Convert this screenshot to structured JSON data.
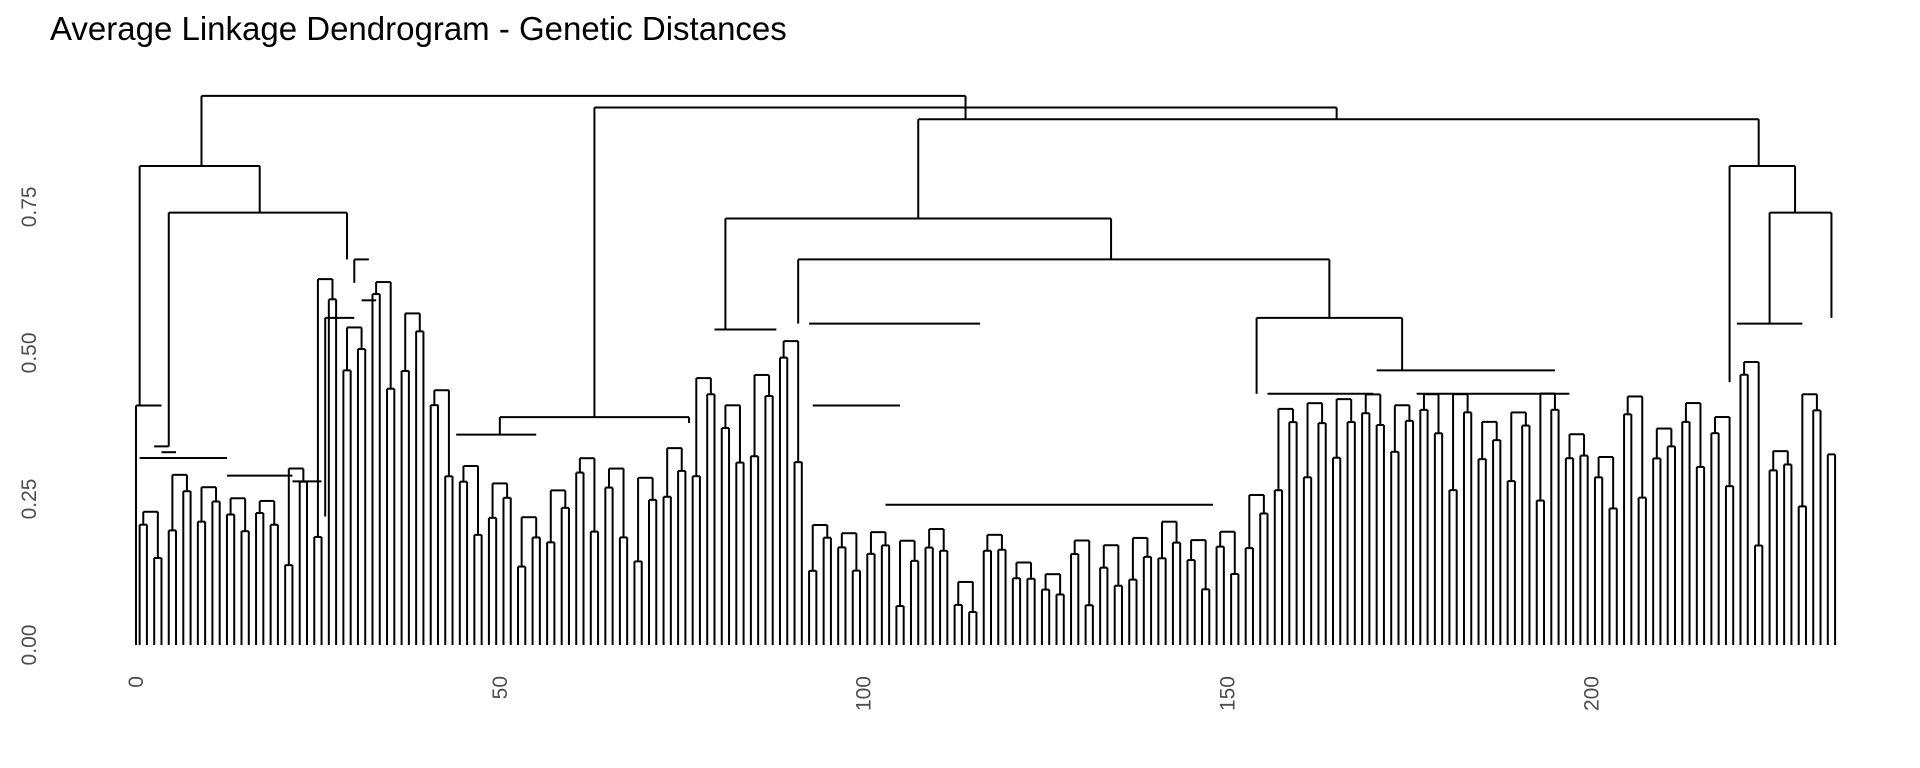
{
  "chart_data": {
    "type": "dendrogram",
    "title": "Average Linkage Dendrogram - Genetic Distances",
    "xlabel": "",
    "ylabel": "",
    "y_ticks": [
      0.0,
      0.25,
      0.5,
      0.75
    ],
    "y_tick_labels": [
      "0.00",
      "0.25",
      "0.50",
      "0.75"
    ],
    "x_ticks": [
      0,
      50,
      100,
      150,
      200
    ],
    "x_tick_labels": [
      "0",
      "50",
      "100",
      "150",
      "200"
    ],
    "ylim": [
      0,
      0.95
    ],
    "xlim": [
      0,
      235
    ],
    "leaf_count": 235,
    "line_color": "#000000",
    "merges": [
      {
        "l": 0.5,
        "r": 12.5,
        "h": 0.32,
        "n": "a1"
      },
      {
        "l": 12.5,
        "r": 21.5,
        "h": 0.29,
        "n": "a2"
      },
      {
        "l": 21.5,
        "r": 25.5,
        "h": 0.28,
        "n": "a3"
      },
      {
        "l": 3.5,
        "r": 5.5,
        "h": 0.33,
        "n": "a4"
      },
      {
        "l": 2.5,
        "r": 4.5,
        "h": 0.34,
        "n": "a5"
      },
      {
        "l": 0.0,
        "r": 3.5,
        "h": 0.41,
        "n": "a6"
      },
      {
        "l": 26.0,
        "r": 30.0,
        "h": 0.56,
        "n": "a7"
      },
      {
        "l": 31.0,
        "r": 33.0,
        "h": 0.59,
        "n": "a8"
      },
      {
        "l": 30.0,
        "r": 32.0,
        "h": 0.66,
        "n": "a9"
      },
      {
        "l": 4.5,
        "r": 29.0,
        "h": 0.74,
        "n": "a10"
      },
      {
        "l": 0.5,
        "r": 17.0,
        "h": 0.82,
        "n": "a11"
      },
      {
        "l": 44.0,
        "r": 55.0,
        "h": 0.36,
        "n": "b1"
      },
      {
        "l": 50.0,
        "r": 76.0,
        "h": 0.39,
        "n": "b2"
      },
      {
        "l": 79.5,
        "r": 88.0,
        "h": 0.54,
        "n": "c1"
      },
      {
        "l": 93.0,
        "r": 105.0,
        "h": 0.41,
        "n": "c2"
      },
      {
        "l": 103.0,
        "r": 148.0,
        "h": 0.24,
        "n": "c3"
      },
      {
        "l": 92.5,
        "r": 116.0,
        "h": 0.55,
        "n": "c4"
      },
      {
        "l": 155.5,
        "r": 170.0,
        "h": 0.43,
        "n": "d1"
      },
      {
        "l": 176.0,
        "r": 197.0,
        "h": 0.43,
        "n": "d2"
      },
      {
        "l": 170.5,
        "r": 195.0,
        "h": 0.47,
        "n": "d3"
      },
      {
        "l": 154.0,
        "r": 174.0,
        "h": 0.56,
        "n": "d4"
      },
      {
        "l": 91.0,
        "r": 164.0,
        "h": 0.66,
        "n": "d5"
      },
      {
        "l": 81.0,
        "r": 134.0,
        "h": 0.73,
        "n": "d6"
      },
      {
        "l": 220.0,
        "r": 229.0,
        "h": 0.55,
        "n": "e1"
      },
      {
        "l": 224.5,
        "r": 233.0,
        "h": 0.74,
        "n": "e2"
      },
      {
        "l": 219.0,
        "r": 228.0,
        "h": 0.82,
        "n": "e3"
      },
      {
        "l": 107.5,
        "r": 223.0,
        "h": 0.9,
        "n": "f1"
      },
      {
        "l": 63.0,
        "r": 165.0,
        "h": 0.92,
        "n": "f2"
      },
      {
        "l": 9.0,
        "r": 114.0,
        "h": 0.94,
        "n": "f3"
      }
    ]
  }
}
